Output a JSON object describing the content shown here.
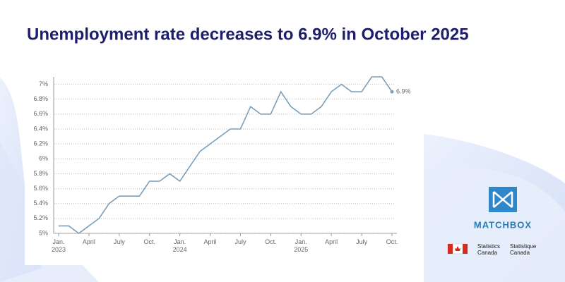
{
  "chart_data": {
    "type": "line",
    "title": "Unemployment rate decreases to 6.9% in October 2025",
    "categories": [
      "Jan. 2023",
      null,
      null,
      "April",
      null,
      null,
      "July",
      null,
      null,
      "Oct.",
      null,
      null,
      "Jan. 2024",
      null,
      null,
      "April",
      null,
      null,
      "July",
      null,
      null,
      "Oct.",
      null,
      null,
      "Jan. 2025",
      null,
      null,
      "April",
      null,
      null,
      "July",
      null,
      null,
      "Oct."
    ],
    "series": [
      {
        "color": "#7b9fba",
        "values": [
          5.1,
          5.1,
          5.0,
          5.1,
          5.2,
          5.4,
          5.5,
          5.5,
          5.5,
          5.7,
          5.7,
          5.8,
          5.7,
          5.9,
          6.1,
          6.2,
          6.3,
          6.4,
          6.4,
          6.7,
          6.6,
          6.6,
          6.9,
          6.7,
          6.6,
          6.6,
          6.7,
          6.9,
          7.0,
          6.9,
          6.9,
          7.1,
          7.1,
          6.9
        ],
        "value_labels": [
          null,
          null,
          null,
          null,
          null,
          null,
          null,
          null,
          null,
          null,
          null,
          null,
          null,
          null,
          null,
          null,
          null,
          null,
          null,
          null,
          null,
          null,
          null,
          null,
          null,
          null,
          null,
          null,
          null,
          null,
          null,
          null,
          null,
          "6.9%"
        ]
      }
    ],
    "ylim": [
      5,
      7.1
    ],
    "yticks": [
      {
        "value": 5,
        "label": "5%"
      },
      {
        "value": 5.2,
        "label": "5.2%"
      },
      {
        "value": 5.4,
        "label": "5.4%"
      },
      {
        "value": 5.6,
        "label": "5.6%"
      },
      {
        "value": 5.8,
        "label": "5.8%"
      },
      {
        "value": 6,
        "label": "6%"
      },
      {
        "value": 6.2,
        "label": "6.2%"
      },
      {
        "value": 6.4,
        "label": "6.4%"
      },
      {
        "value": 6.6,
        "label": "6.6%"
      },
      {
        "value": 6.8,
        "label": "6.8%"
      },
      {
        "value": 7,
        "label": "7%"
      }
    ],
    "grid": true
  },
  "branding": {
    "logo": "MATCHBOX",
    "agency_en": "Statistics Canada",
    "agency_fr": "Statistique Canada"
  }
}
